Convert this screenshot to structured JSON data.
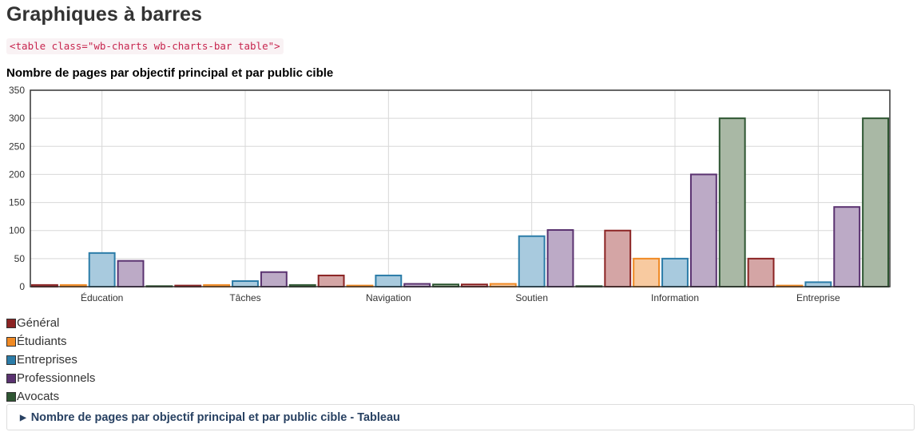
{
  "page": {
    "title": "Graphiques à barres",
    "code": "<table class=\"wb-charts wb-charts-bar table\">"
  },
  "details": {
    "summary": "Nombre de pages par objectif principal et par public cible - Tableau"
  },
  "chart_data": {
    "type": "bar",
    "title": "Nombre de pages par objectif principal et par public cible",
    "xlabel": "",
    "ylabel": "",
    "ylim": [
      0,
      350
    ],
    "yticks": [
      0,
      50,
      100,
      150,
      200,
      250,
      300,
      350
    ],
    "grid": true,
    "legend_position": "bottom-left",
    "categories": [
      "Éducation",
      "Tâches",
      "Navigation",
      "Soutien",
      "Information",
      "Entreprise"
    ],
    "series": [
      {
        "name": "Général",
        "color": "#8b2323",
        "fill": "#d4a5a5",
        "values": [
          3,
          2,
          20,
          4,
          100,
          50
        ]
      },
      {
        "name": "Étudiants",
        "color": "#f08a24",
        "fill": "#f8caa0",
        "values": [
          3,
          3,
          2,
          5,
          50,
          2
        ]
      },
      {
        "name": "Entreprises",
        "color": "#2b7ca8",
        "fill": "#a8cade",
        "values": [
          60,
          10,
          20,
          90,
          50,
          8
        ]
      },
      {
        "name": "Professionnels",
        "color": "#5a3270",
        "fill": "#bcaac6",
        "values": [
          46,
          26,
          5,
          101,
          200,
          142
        ]
      },
      {
        "name": "Avocats",
        "color": "#2e5632",
        "fill": "#a9b8a5",
        "values": [
          1,
          3,
          4,
          1,
          300,
          300
        ]
      }
    ]
  }
}
